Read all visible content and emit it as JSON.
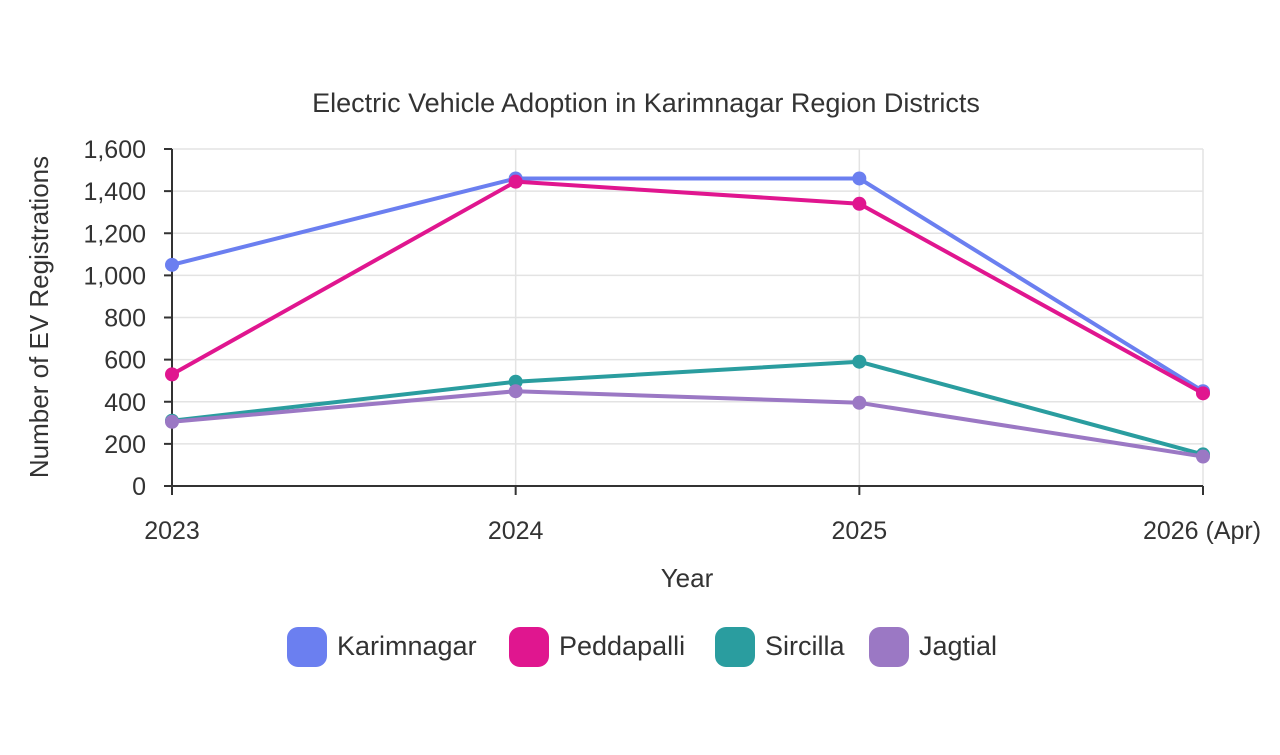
{
  "chart_data": {
    "type": "line",
    "title": "Electric Vehicle Adoption in Karimnagar Region Districts",
    "xlabel": "Year",
    "ylabel": "Number of EV Registrations",
    "categories": [
      "2023",
      "2024",
      "2025",
      "2026 (Apr)"
    ],
    "ylim": [
      0,
      1600
    ],
    "yticks": [
      0,
      200,
      400,
      600,
      800,
      1000,
      1200,
      1400,
      1600
    ],
    "ytick_labels": [
      "0",
      "200",
      "400",
      "600",
      "800",
      "1,000",
      "1,200",
      "1,400",
      "1,600"
    ],
    "grid": true,
    "legend_position": "bottom",
    "series": [
      {
        "name": "Karimnagar",
        "color": "#6b7ff0",
        "values": [
          1050,
          1460,
          1460,
          450
        ]
      },
      {
        "name": "Peddapalli",
        "color": "#e0168f",
        "values": [
          530,
          1445,
          1340,
          440
        ]
      },
      {
        "name": "Sircilla",
        "color": "#2a9d9f",
        "values": [
          310,
          495,
          590,
          150
        ]
      },
      {
        "name": "Jagtial",
        "color": "#9b78c4",
        "values": [
          305,
          450,
          395,
          140
        ]
      }
    ]
  }
}
